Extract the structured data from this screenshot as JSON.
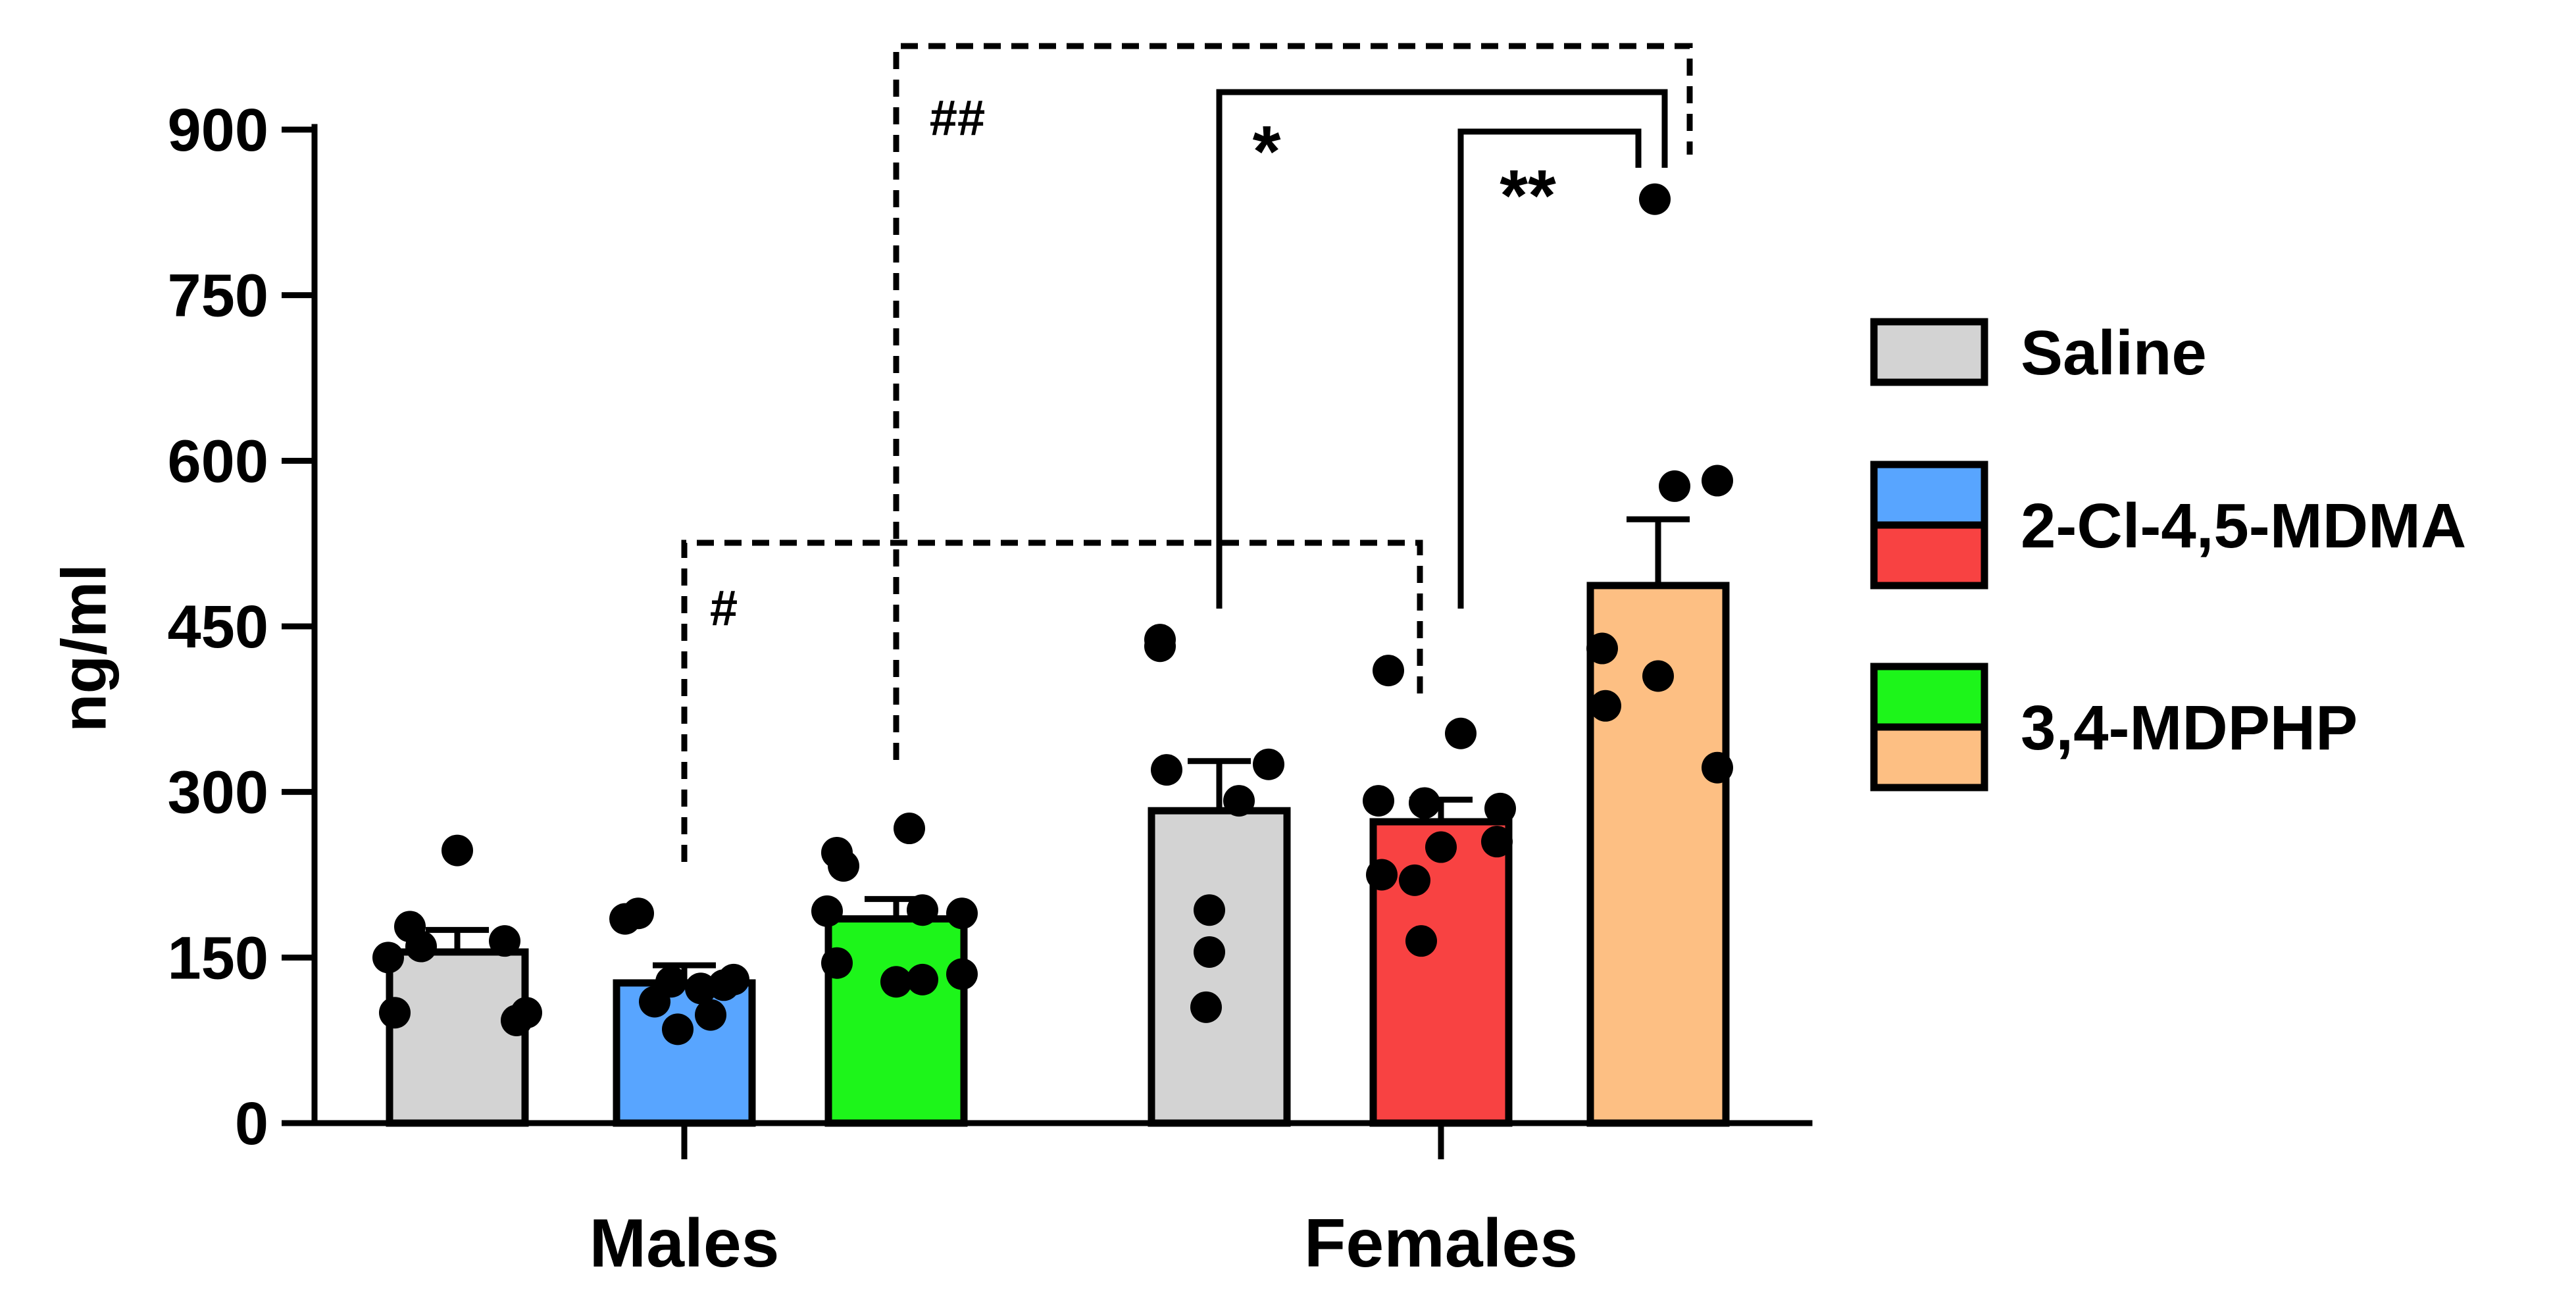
{
  "chart_data": {
    "type": "bar",
    "ylabel": "ng/ml",
    "ylim": [
      0,
      900
    ],
    "yticks": [
      "0",
      "150",
      "300",
      "450",
      "600",
      "750",
      "900"
    ],
    "groups": [
      "Males",
      "Females"
    ],
    "legend": [
      {
        "label": "Saline",
        "colors": [
          "#d3d3d3"
        ]
      },
      {
        "label": "2-Cl-4,5-MDMA",
        "colors": [
          "#58a5ff",
          "#f84242"
        ]
      },
      {
        "label": "3,4-MDPHP",
        "colors": [
          "#1df51a",
          "#fdbf83"
        ]
      }
    ],
    "bars": [
      {
        "group": "Males",
        "treatment": "Saline",
        "color": "#d3d3d3",
        "mean": 155,
        "sem": 20,
        "points": [
          247,
          178,
          165,
          160,
          150,
          100,
          100,
          93
        ]
      },
      {
        "group": "Males",
        "treatment": "2-Cl-4,5-MDMA",
        "color": "#58a5ff",
        "mean": 127,
        "sem": 16,
        "points": [
          190,
          185,
          130,
          128,
          125,
          122,
          110,
          98,
          85
        ]
      },
      {
        "group": "Males",
        "treatment": "3,4-MDPHP",
        "color": "#1df51a",
        "mean": 185,
        "sem": 18,
        "points": [
          267,
          245,
          233,
          193,
          192,
          190,
          145,
          135,
          130,
          128
        ]
      },
      {
        "group": "Females",
        "treatment": "Saline",
        "color": "#d3d3d3",
        "mean": 283,
        "sem": 45,
        "points": [
          438,
          432,
          325,
          320,
          292,
          193,
          155,
          105
        ]
      },
      {
        "group": "Females",
        "treatment": "2-Cl-4,5-MDMA",
        "color": "#f84242",
        "mean": 273,
        "sem": 20,
        "points": [
          410,
          353,
          292,
          290,
          285,
          255,
          250,
          225,
          220,
          165
        ]
      },
      {
        "group": "Females",
        "treatment": "3,4-MDPHP",
        "color": "#fdbf83",
        "mean": 487,
        "sem": 60,
        "points": [
          837,
          582,
          577,
          430,
          405,
          378,
          322
        ]
      }
    ],
    "significance": [
      {
        "label": "#",
        "style": "dashed",
        "between": [
          "Males 2-Cl-4,5-MDMA",
          "Females 2-Cl-4,5-MDMA"
        ]
      },
      {
        "label": "##",
        "style": "dashed",
        "between": [
          "Males 3,4-MDPHP",
          "Females 3,4-MDPHP"
        ]
      },
      {
        "label": "*",
        "style": "solid",
        "between": [
          "Females Saline",
          "Females 3,4-MDPHP"
        ]
      },
      {
        "label": "**",
        "style": "solid",
        "between": [
          "Females 2-Cl-4,5-MDMA",
          "Females 3,4-MDPHP"
        ]
      }
    ]
  }
}
